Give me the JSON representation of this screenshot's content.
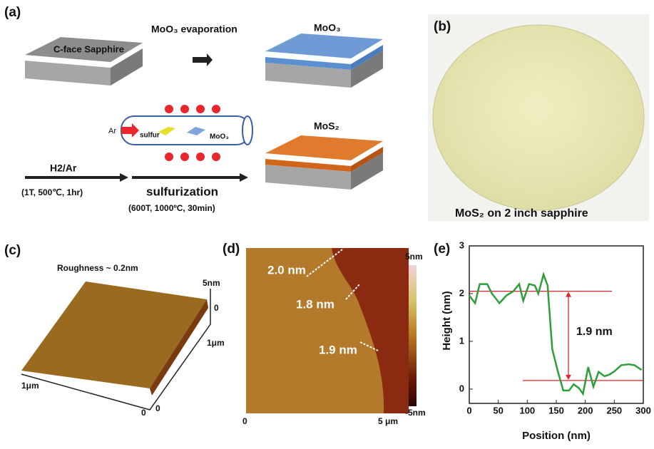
{
  "panels": {
    "a": {
      "label": "(a)",
      "substrate": "C-face Sapphire",
      "step1": "MoO₃ evaporation",
      "result1": "MoO₃",
      "gas": "Ar",
      "sulfur": "sulfur",
      "source": "MoO₃",
      "result2": "MoS₂",
      "anneal_gas": "H2/Ar",
      "anneal_cond": "(1T, 500℃, 1hr)",
      "step2": "sulfurization",
      "step2_cond": "(600T, 1000ºC, 30min)"
    },
    "b": {
      "label": "(b)",
      "caption": "MoS₂  on 2 inch sapphire"
    },
    "c": {
      "label": "(c)",
      "roughness": "Roughness ~ 0.2nm",
      "z_top": "5nm",
      "z_zero": "0",
      "y_size": "1μm",
      "x_size": "1μm",
      "origin_x": "0",
      "origin_y": "0"
    },
    "d": {
      "label": "(d)",
      "step_a": "2.0 nm",
      "step_b": "1.8 nm",
      "step_c": "1.9 nm",
      "bar_max": "5nm",
      "bar_min": "-5nm",
      "x_start": "0",
      "x_end": "5 μm"
    },
    "e": {
      "label": "(e)"
    }
  },
  "chart_data": {
    "type": "line",
    "x_label": "Position (nm)",
    "y_label": "Height (nm)",
    "annotation": "1.9 nm",
    "x": [
      0,
      10,
      18,
      31,
      39,
      52,
      64,
      76,
      86,
      93,
      103,
      113,
      119,
      128,
      135,
      143,
      152,
      162,
      172,
      180,
      189,
      196,
      205,
      214,
      223,
      233,
      241,
      250,
      262,
      275,
      285,
      297
    ],
    "values": [
      1.96,
      1.8,
      2.2,
      2.2,
      2.0,
      1.8,
      1.96,
      2.05,
      2.2,
      1.85,
      2.2,
      2.17,
      2.0,
      2.4,
      2.17,
      0.84,
      0.4,
      -0.03,
      -0.03,
      0.1,
      0.02,
      -0.1,
      0.46,
      0.05,
      0.36,
      0.27,
      0.3,
      0.37,
      0.5,
      0.52,
      0.5,
      0.4
    ],
    "color": "#2e9e3a",
    "ref_color": "#e0252b",
    "ref_lines": [
      2.05,
      0.18
    ],
    "xlim": [
      0,
      300
    ],
    "ylim": [
      -0.3,
      3
    ],
    "xticks": [
      0,
      50,
      100,
      150,
      200,
      250,
      300
    ],
    "yticks": [
      0,
      1,
      2,
      3
    ]
  }
}
